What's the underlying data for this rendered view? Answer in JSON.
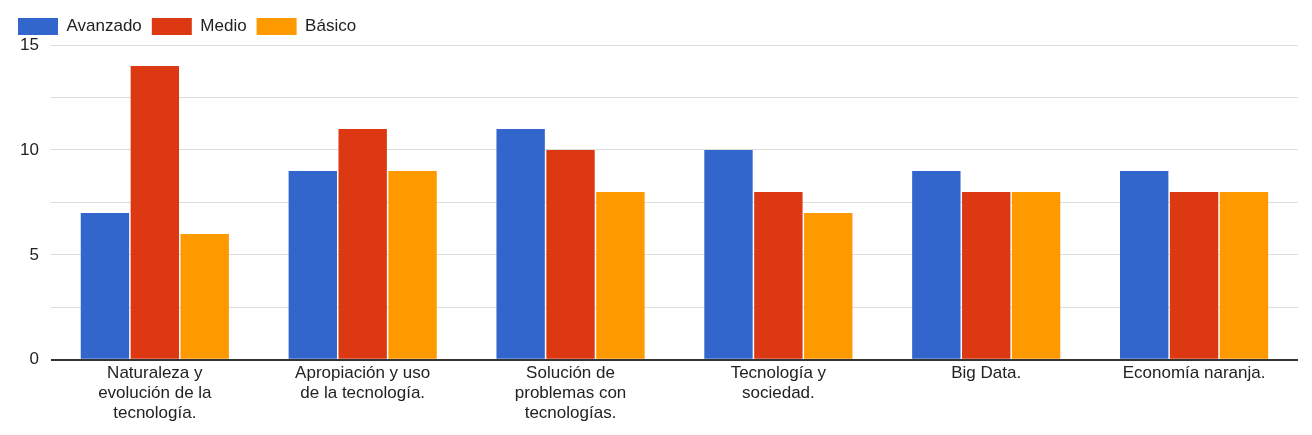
{
  "chart_data": {
    "type": "bar",
    "categories": [
      "Naturaleza y evolución de la tecnología.",
      "Apropiación y uso de la tecnología.",
      "Solución de problemas con tecnologías.",
      "Tecnología y sociedad.",
      "Big Data.",
      "Economía naranja."
    ],
    "series": [
      {
        "name": "Avanzado",
        "color": "#3366cc",
        "values": [
          7,
          9,
          11,
          10,
          9,
          9
        ]
      },
      {
        "name": "Medio",
        "color": "#dc3912",
        "values": [
          14,
          11,
          10,
          8,
          8,
          8
        ]
      },
      {
        "name": "Básico",
        "color": "#ff9900",
        "values": [
          6,
          9,
          8,
          7,
          8,
          8
        ]
      }
    ],
    "ylim": [
      0,
      15
    ],
    "yticks": [
      0,
      {
        "value": 2.5,
        "label": null
      },
      5,
      {
        "value": 7.5,
        "label": null
      },
      10,
      {
        "value": 12.5,
        "label": null
      },
      15
    ],
    "grid": "y",
    "legend": "top left"
  }
}
